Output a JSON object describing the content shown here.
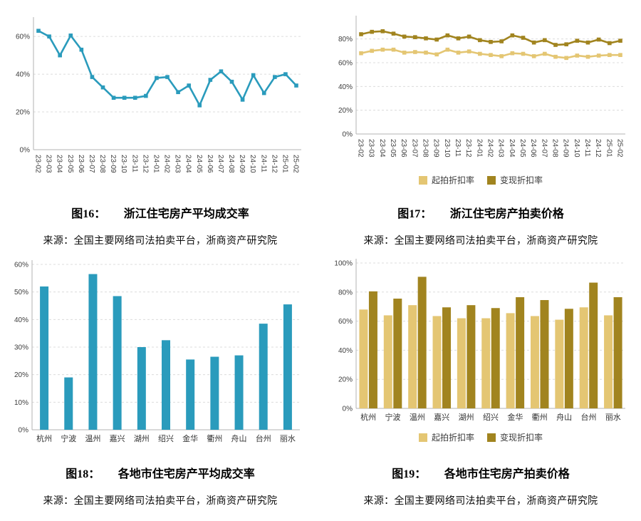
{
  "page": {
    "background": "#ffffff"
  },
  "colors": {
    "teal": "#2A9BBC",
    "light_gold": "#E4C673",
    "dark_gold": "#A1841F",
    "gridline": "#dcdcdc",
    "axis": "#b3b3b3"
  },
  "figures": [
    {
      "label": "图16：",
      "title": "浙江住宅房产平均成交率",
      "source": "来源：全国主要网络司法拍卖平台，浙商资产研究院"
    },
    {
      "label": "图17：",
      "title": "浙江住宅房产拍卖价格",
      "source": "来源：全国主要网络司法拍卖平台，浙商资产研究院"
    },
    {
      "label": "图18：",
      "title": "各地市住宅房产平均成交率",
      "source": "来源：全国主要网络司法拍卖平台，浙商资产研究院"
    },
    {
      "label": "图19：",
      "title": "各地市住宅房产拍卖价格",
      "source": "来源：全国主要网络司法拍卖平台，浙商资产研究院"
    }
  ],
  "chart_data": [
    {
      "type": "line",
      "title": "图16： 浙江住宅房产平均成交率",
      "x": [
        "23-02",
        "23-03",
        "23-04",
        "23-05",
        "23-06",
        "23-07",
        "23-08",
        "23-09",
        "23-10",
        "23-11",
        "23-12",
        "24-01",
        "24-02",
        "24-03",
        "24-04",
        "24-05",
        "24-06",
        "24-07",
        "24-08",
        "24-09",
        "24-10",
        "24-11",
        "24-12",
        "25-01",
        "25-02"
      ],
      "series": [
        {
          "name": "",
          "color": "#2A9BBC",
          "values": [
            63,
            60,
            50,
            60.5,
            53,
            38.5,
            33,
            27.5,
            27.5,
            27.5,
            28.5,
            38,
            38.5,
            30.5,
            34,
            23.5,
            37,
            41.5,
            36,
            26.5,
            39.5,
            30,
            38.5,
            40,
            34
          ]
        }
      ],
      "xlabel": "",
      "ylabel": "",
      "ylim": [
        0,
        68
      ],
      "yticks": [
        0,
        20,
        40,
        60
      ],
      "grid": true,
      "legend": false,
      "x_label_rotation": 90
    },
    {
      "type": "line",
      "title": "图17： 浙江住宅房产拍卖价格",
      "x": [
        "23-02",
        "23-03",
        "23-04",
        "23-05",
        "23-06",
        "23-07",
        "23-08",
        "23-09",
        "23-10",
        "23-11",
        "23-12",
        "24-01",
        "24-02",
        "24-03",
        "24-04",
        "24-05",
        "24-06",
        "24-07",
        "24-08",
        "24-09",
        "24-10",
        "24-11",
        "24-12",
        "25-01",
        "25-02"
      ],
      "series": [
        {
          "name": "起拍折扣率",
          "color": "#E4C673",
          "values": [
            68,
            70,
            71,
            71,
            68.5,
            69,
            68.5,
            67,
            71,
            68.5,
            69.5,
            67.5,
            66.5,
            65.5,
            68,
            67.5,
            65.5,
            67.5,
            65,
            64,
            66,
            65,
            66,
            66.5,
            66.5
          ]
        },
        {
          "name": "变现折扣率",
          "color": "#A1841F",
          "values": [
            84,
            86,
            86.5,
            84.5,
            82,
            81.5,
            80.5,
            79.5,
            83,
            80.5,
            82,
            79,
            77.5,
            78,
            83,
            81,
            77,
            79,
            75,
            75.5,
            78.5,
            77,
            79.5,
            76.5,
            78.5
          ]
        }
      ],
      "xlabel": "",
      "ylabel": "",
      "ylim": [
        0,
        96
      ],
      "yticks": [
        0,
        20,
        40,
        60,
        80
      ],
      "grid": true,
      "legend": true,
      "legend_position": "bottom",
      "x_label_rotation": 90
    },
    {
      "type": "bar",
      "title": "图18： 各地市住宅房产平均成交率",
      "categories": [
        "杭州",
        "宁波",
        "温州",
        "嘉兴",
        "湖州",
        "绍兴",
        "金华",
        "衢州",
        "舟山",
        "台州",
        "丽水"
      ],
      "series": [
        {
          "name": "",
          "color": "#2A9BBC",
          "values": [
            52,
            19,
            56.5,
            48.5,
            30,
            32.5,
            25.5,
            26.5,
            27,
            38.5,
            45.5
          ]
        }
      ],
      "xlabel": "",
      "ylabel": "",
      "ylim": [
        0,
        60
      ],
      "yticks": [
        0,
        10,
        20,
        30,
        40,
        50,
        60
      ],
      "grid": true,
      "legend": false
    },
    {
      "type": "bar",
      "title": "图19： 各地市住宅房产拍卖价格",
      "categories": [
        "杭州",
        "宁波",
        "温州",
        "嘉兴",
        "湖州",
        "绍兴",
        "金华",
        "衢州",
        "舟山",
        "台州",
        "丽水"
      ],
      "series": [
        {
          "name": "起拍折扣率",
          "color": "#E4C673",
          "values": [
            68,
            64,
            71,
            63.5,
            62,
            62,
            65.5,
            63.5,
            61,
            69.5,
            64
          ]
        },
        {
          "name": "变现折扣率",
          "color": "#A1841F",
          "values": [
            80.5,
            75.5,
            90.5,
            69.5,
            71,
            69,
            76.5,
            74.5,
            68.5,
            86.5,
            76.5
          ]
        }
      ],
      "xlabel": "",
      "ylabel": "",
      "ylim": [
        0,
        100
      ],
      "yticks": [
        0,
        20,
        40,
        60,
        80,
        100
      ],
      "grid": true,
      "legend": true,
      "legend_position": "bottom"
    }
  ]
}
